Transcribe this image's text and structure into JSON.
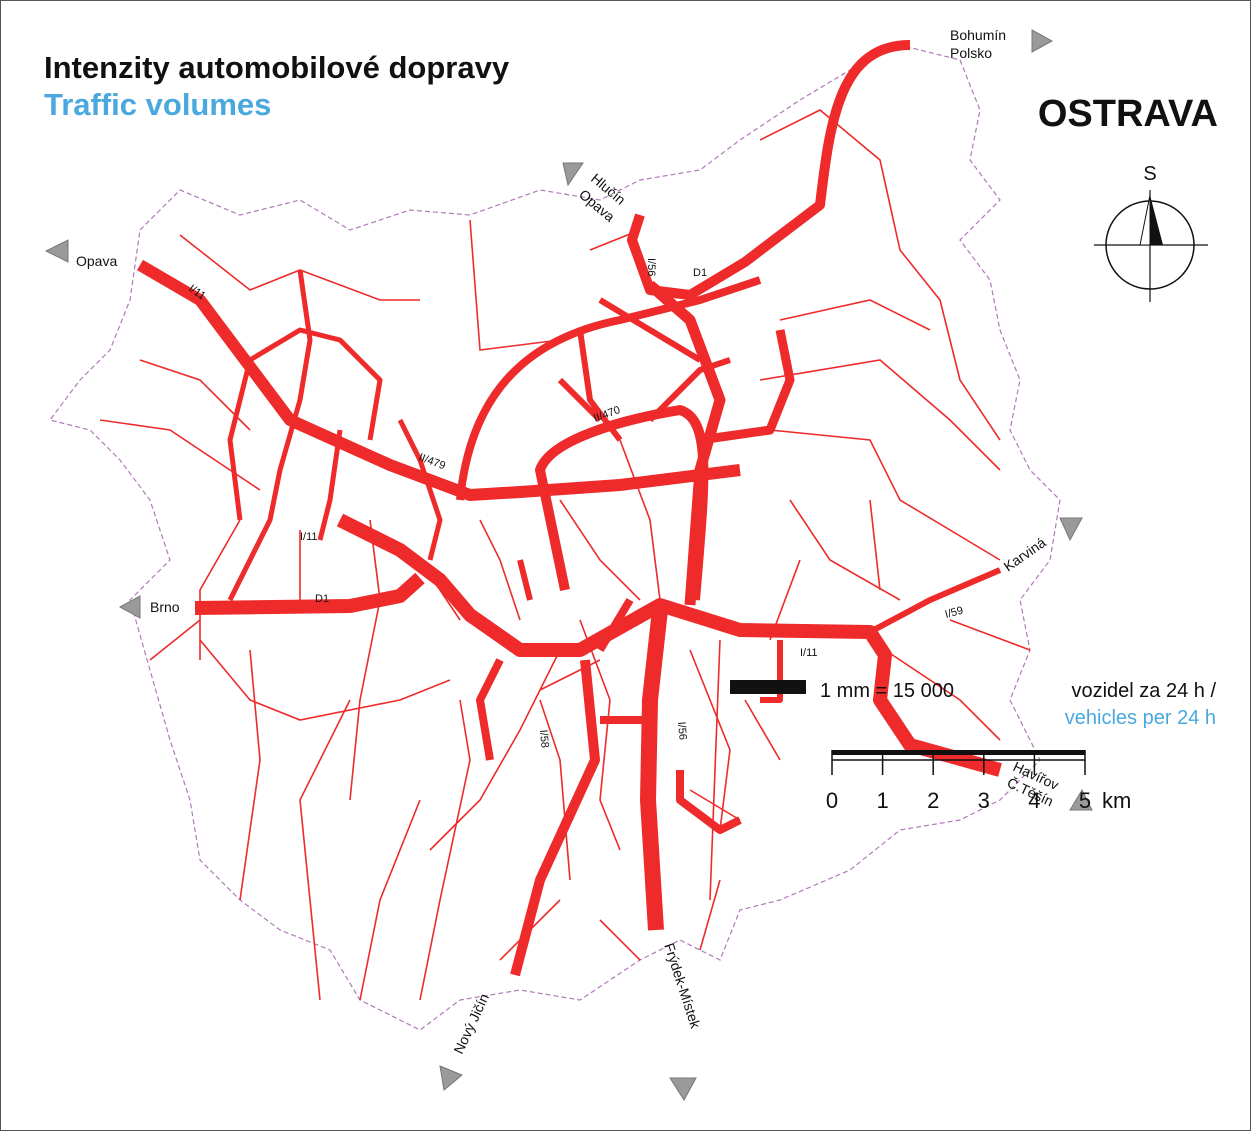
{
  "title": "Intenzity automobilové dopravy",
  "subtitle": "Traffic volumes",
  "city": "OSTRAVA",
  "compass": {
    "label": "S"
  },
  "destinations": [
    {
      "lines": [
        "Bohumín",
        "Polsko"
      ]
    },
    {
      "lines": [
        "Hlučín",
        "Opava"
      ]
    },
    {
      "lines": [
        "Opava"
      ]
    },
    {
      "lines": [
        "Brno"
      ]
    },
    {
      "lines": [
        "Karviná"
      ]
    },
    {
      "lines": [
        "Havířov",
        "Č.Těšín"
      ]
    },
    {
      "lines": [
        "Nový Jičín"
      ]
    },
    {
      "lines": [
        "Frýdek-Místek"
      ]
    }
  ],
  "road_labels": [
    "I/11",
    "II/479",
    "I/11",
    "D1",
    "II/470",
    "I/56",
    "D1",
    "I/58",
    "I/56",
    "I/11",
    "I/59"
  ],
  "legend": {
    "ratio": "1 mm = 15 000",
    "unit_cz": "vozidel za 24 h /",
    "unit_en": "vehicles per 24 h"
  },
  "scale": {
    "ticks": [
      0,
      1,
      2,
      3,
      4,
      5
    ],
    "unit": "km"
  }
}
